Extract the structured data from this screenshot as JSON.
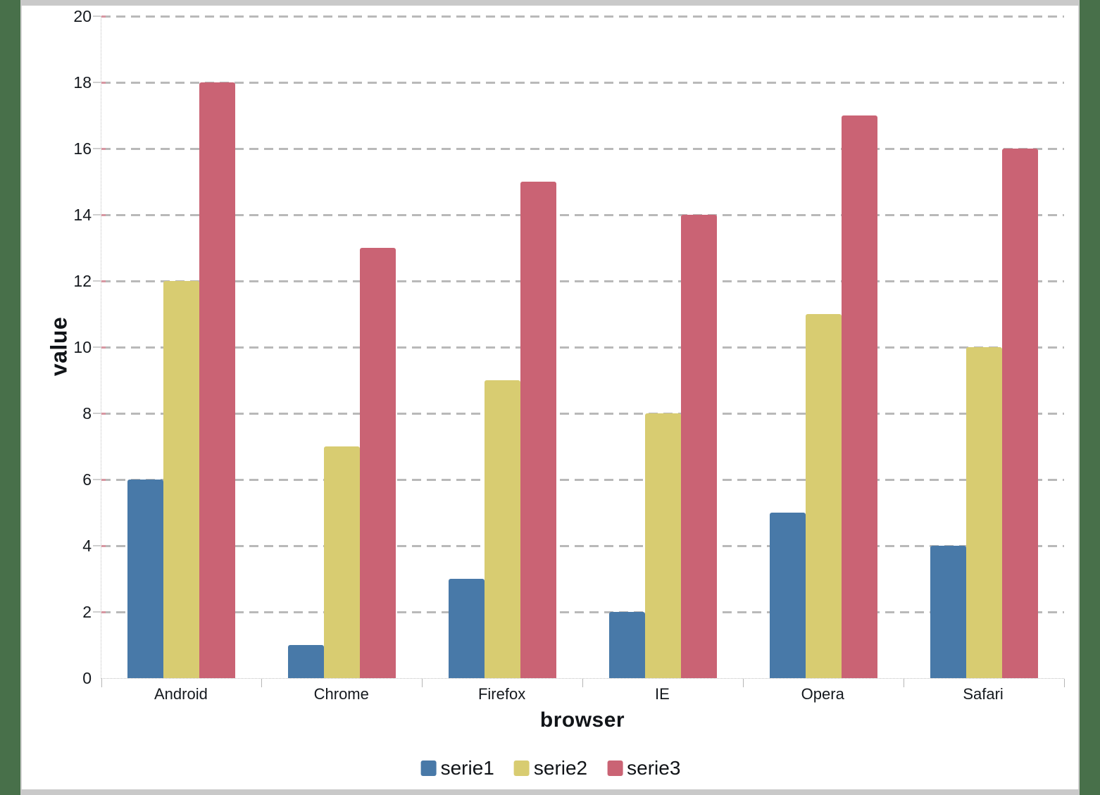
{
  "frame": {
    "side_color": "#48704A",
    "edge_color": "#c9c9c9"
  },
  "chart_data": {
    "type": "bar",
    "title": "",
    "xlabel": "browser",
    "ylabel": "value",
    "categories": [
      "Android",
      "Chrome",
      "Firefox",
      "IE",
      "Opera",
      "Safari"
    ],
    "series": [
      {
        "name": "serie1",
        "color": "#4879A8",
        "values": [
          6,
          1,
          3,
          2,
          5,
          4
        ]
      },
      {
        "name": "serie2",
        "color": "#D8CC71",
        "values": [
          12,
          7,
          9,
          8,
          11,
          10
        ]
      },
      {
        "name": "serie3",
        "color": "#CA6374",
        "values": [
          18,
          13,
          15,
          14,
          17,
          16
        ]
      }
    ],
    "ylim": [
      0,
      20
    ],
    "ytick_step": 2,
    "grid": "horizontal dashed gridlines",
    "legend_position": "bottom-center",
    "gridline_color": "#b9b9b9",
    "text_color": "#15191e"
  }
}
